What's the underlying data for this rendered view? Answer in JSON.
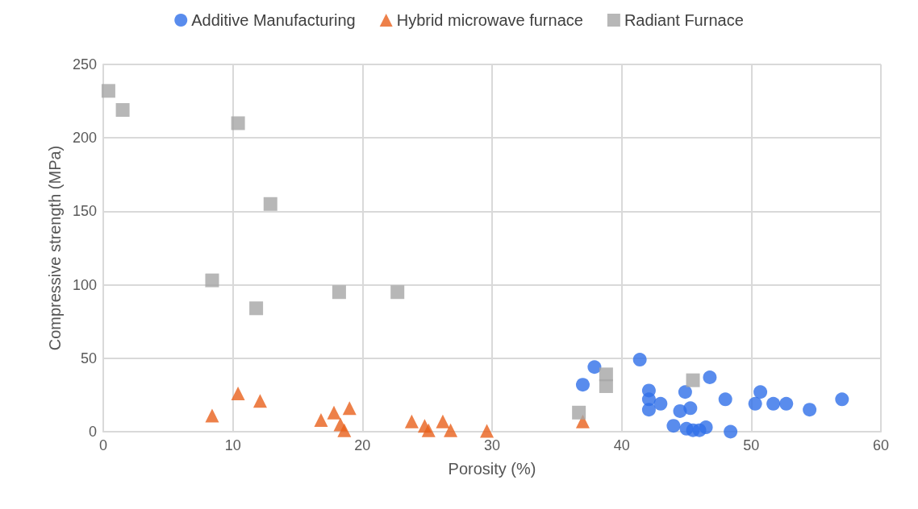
{
  "chart_data": {
    "type": "scatter",
    "xlabel": "Porosity (%)",
    "ylabel": "Compressive strength (MPa)",
    "xlim": [
      0,
      60
    ],
    "xticks": [
      0,
      10,
      20,
      30,
      40,
      50,
      60
    ],
    "ylim": [
      0,
      250
    ],
    "yticks": [
      0,
      50,
      100,
      150,
      200,
      250
    ],
    "grid": true,
    "legend": "top",
    "series": [
      {
        "name": "Additive Manufacturing",
        "color": "#2f6fe8",
        "marker": "circle",
        "x": [
          37,
          37.9,
          41.4,
          42.1,
          42.1,
          42.1,
          43,
          44,
          44.5,
          44.9,
          45,
          45.3,
          45.5,
          46,
          46.5,
          46.8,
          48,
          48.4,
          50.3,
          50.7,
          51.7,
          52.7,
          54.5,
          57
        ],
        "values": [
          32,
          44,
          49,
          28,
          22,
          15,
          19,
          4,
          14,
          27,
          2,
          16,
          1,
          1,
          3,
          37,
          22,
          0,
          19,
          27,
          19,
          19,
          15,
          22
        ]
      },
      {
        "name": "Hybrid microwave furnace",
        "color": "#e8601c",
        "marker": "triangle",
        "x": [
          8.4,
          10.4,
          12.1,
          16.8,
          17.8,
          18.3,
          18.6,
          19,
          23.8,
          24.8,
          25.1,
          26.2,
          26.8,
          29.6,
          37
        ],
        "values": [
          11,
          26,
          21,
          8,
          13,
          5,
          1,
          16,
          7,
          4,
          1,
          7,
          1,
          0.5,
          7
        ]
      },
      {
        "name": "Radiant Furnace",
        "color": "#a5a5a5",
        "marker": "square",
        "x": [
          0.4,
          1.5,
          10.4,
          12.9,
          8.4,
          11.8,
          18.2,
          22.7,
          36.7,
          38.8,
          38.8,
          45.5
        ],
        "values": [
          232,
          219,
          210,
          155,
          103,
          84,
          95,
          95,
          13,
          39,
          31,
          35
        ]
      }
    ]
  }
}
